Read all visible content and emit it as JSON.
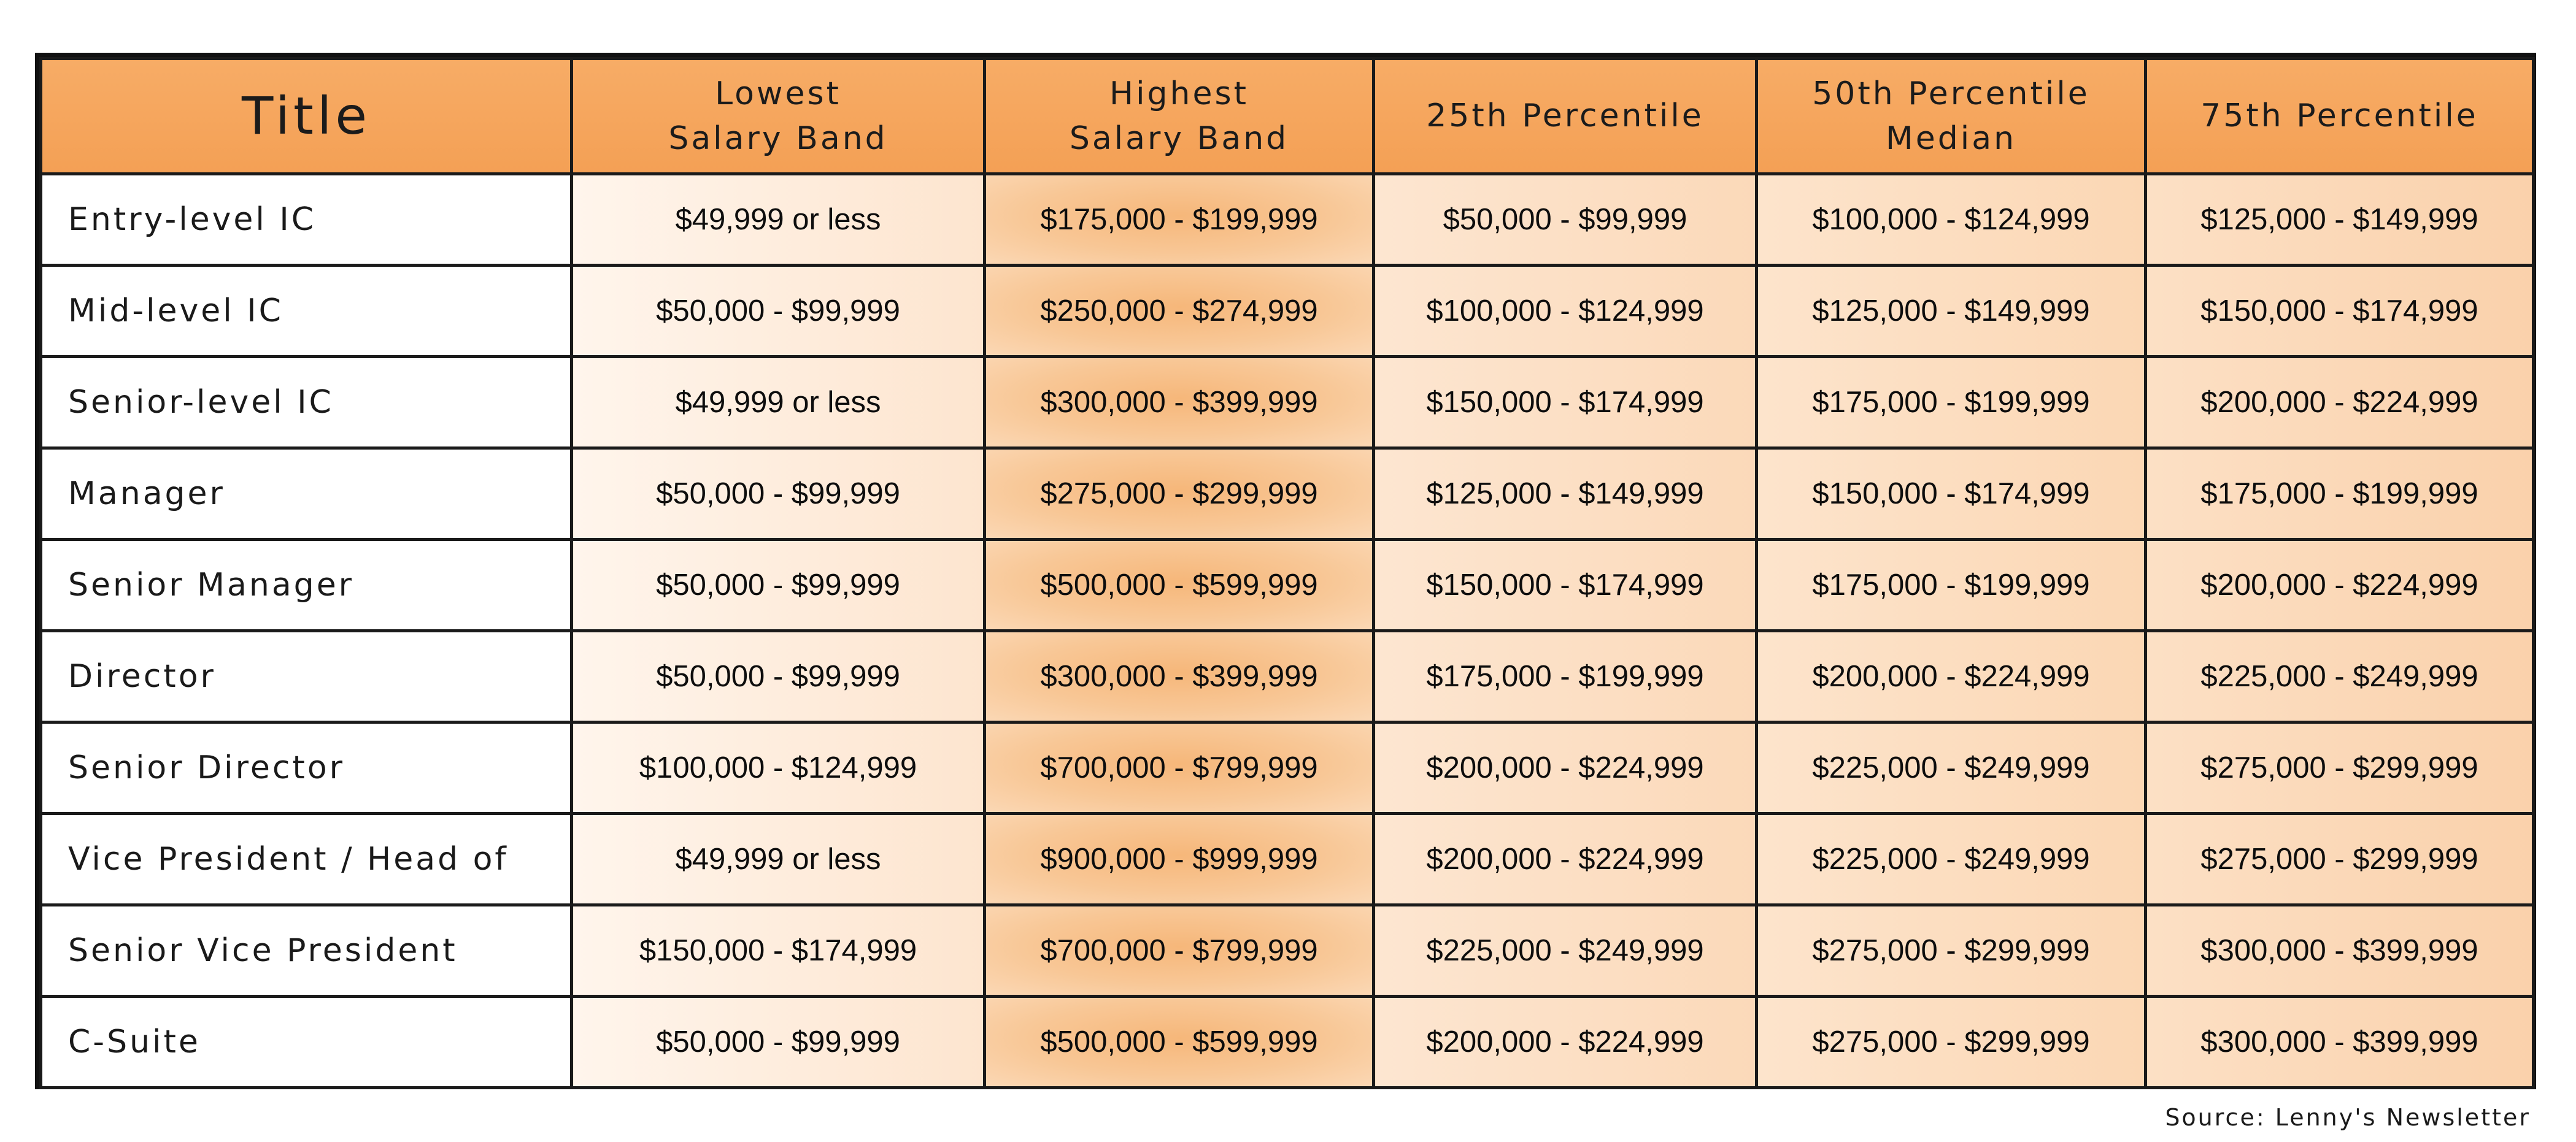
{
  "table": {
    "headers": {
      "title": "Title",
      "lowest": [
        "Lowest",
        "Salary Band"
      ],
      "highest": [
        "Highest",
        "Salary Band"
      ],
      "p25": "25th Percentile",
      "p50": [
        "50th Percentile",
        "Median"
      ],
      "p75": "75th Percentile"
    },
    "rows": [
      {
        "title": "Entry-level IC",
        "lowest": "$49,999 or less",
        "highest": "$175,000 - $199,999",
        "p25": "$50,000 - $99,999",
        "p50": "$100,000 - $124,999",
        "p75": "$125,000 - $149,999"
      },
      {
        "title": "Mid-level IC",
        "lowest": "$50,000 - $99,999",
        "highest": "$250,000 - $274,999",
        "p25": "$100,000 - $124,999",
        "p50": "$125,000 - $149,999",
        "p75": "$150,000 - $174,999"
      },
      {
        "title": "Senior-level IC",
        "lowest": "$49,999 or less",
        "highest": "$300,000 - $399,999",
        "p25": "$150,000 - $174,999",
        "p50": "$175,000 - $199,999",
        "p75": "$200,000 - $224,999"
      },
      {
        "title": "Manager",
        "lowest": "$50,000 - $99,999",
        "highest": "$275,000 - $299,999",
        "p25": "$125,000 - $149,999",
        "p50": "$150,000 - $174,999",
        "p75": "$175,000 - $199,999"
      },
      {
        "title": "Senior Manager",
        "lowest": "$50,000 - $99,999",
        "highest": "$500,000 - $599,999",
        "p25": "$150,000 - $174,999",
        "p50": "$175,000 - $199,999",
        "p75": "$200,000 - $224,999"
      },
      {
        "title": "Director",
        "lowest": "$50,000 - $99,999",
        "highest": "$300,000 - $399,999",
        "p25": "$175,000 - $199,999",
        "p50": "$200,000 - $224,999",
        "p75": "$225,000 - $249,999"
      },
      {
        "title": "Senior Director",
        "lowest": "$100,000 - $124,999",
        "highest": "$700,000 - $799,999",
        "p25": "$200,000 - $224,999",
        "p50": "$225,000 - $249,999",
        "p75": "$275,000 - $299,999"
      },
      {
        "title": "Vice President / Head of",
        "lowest": "$49,999 or less",
        "highest": "$900,000 - $999,999",
        "p25": "$200,000 - $224,999",
        "p50": "$225,000 - $249,999",
        "p75": "$275,000 - $299,999"
      },
      {
        "title": "Senior Vice President",
        "lowest": "$150,000 - $174,999",
        "highest": "$700,000 - $799,999",
        "p25": "$225,000 - $249,999",
        "p50": "$275,000 - $299,999",
        "p75": "$300,000 - $399,999"
      },
      {
        "title": "C-Suite",
        "lowest": "$50,000 - $99,999",
        "highest": "$500,000 - $599,999",
        "p25": "$200,000 - $224,999",
        "p50": "$275,000 - $299,999",
        "p75": "$300,000 - $399,999"
      }
    ]
  },
  "source": "Source: Lenny's Newsletter",
  "colors": {
    "header": "#f4a055",
    "border": "#111111",
    "highest_accent": "#f6b77a"
  }
}
